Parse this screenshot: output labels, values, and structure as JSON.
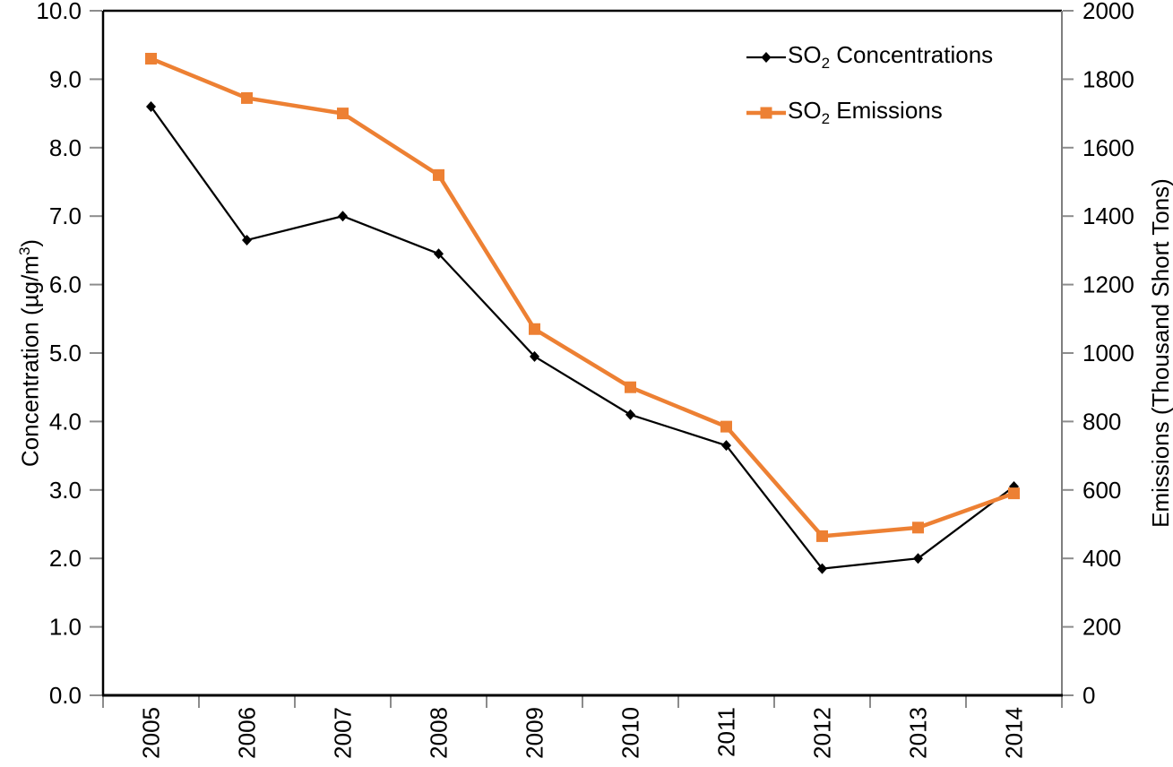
{
  "chart_data": {
    "type": "line",
    "x_categories": [
      "2005",
      "2006",
      "2007",
      "2008",
      "2009",
      "2010",
      "2011",
      "2012",
      "2013",
      "2014"
    ],
    "series": [
      {
        "name": "SO2 Concentrations",
        "label_main": "SO",
        "label_sub": "2",
        "label_rest": " Concentrations",
        "color": "#000000",
        "marker": "diamond",
        "axis": "left",
        "line_width": 2.25,
        "values": [
          8.6,
          6.65,
          7.0,
          6.45,
          4.95,
          4.1,
          3.65,
          1.85,
          2.0,
          3.05
        ]
      },
      {
        "name": "SO2 Emissions",
        "label_main": "SO",
        "label_sub": "2",
        "label_rest": " Emissions",
        "color": "#ED8033",
        "marker": "square",
        "axis": "right",
        "line_width": 4.5,
        "values": [
          1860,
          1745,
          1700,
          1520,
          1070,
          900,
          785,
          465,
          490,
          590
        ]
      }
    ],
    "left_axis": {
      "label": "Concentration (µg/m³)",
      "label_main": "Concentration (µg/m",
      "label_sup": "3",
      "label_rest": ")",
      "min": 0,
      "max": 10,
      "step": 1,
      "decimals": 1
    },
    "right_axis": {
      "label": "Emissions (Thousand Short Tons)",
      "min": 0,
      "max": 2000,
      "step": 200,
      "decimals": 0
    },
    "grid": false,
    "legend_position": "top-right-inside",
    "styles": {
      "axis_color": "#000000",
      "right_axis_color": "#7F7F7F",
      "tick_color": "#8C8C8C",
      "background": "#FFFFFF"
    }
  }
}
